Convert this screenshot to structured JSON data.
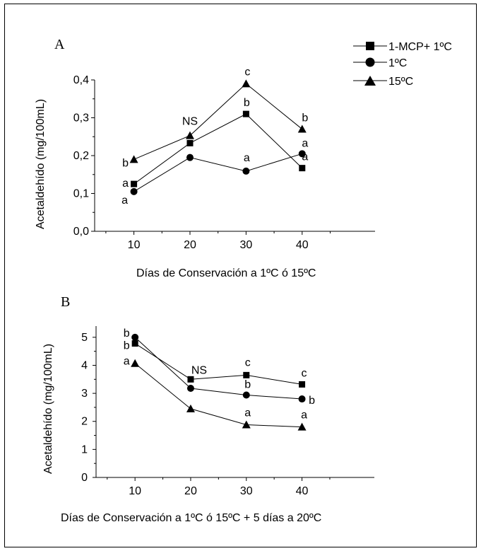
{
  "legend": {
    "items": [
      {
        "label": "1-MCP+ 1ºC",
        "marker": "square"
      },
      {
        "label": "1ºC",
        "marker": "circle"
      },
      {
        "label": "15ºC",
        "marker": "triangle"
      }
    ]
  },
  "chart_data": [
    {
      "type": "line",
      "panel": "A",
      "xlabel": "Días de Conservación a 1ºC ó 15ºC",
      "ylabel": "Acetaldehído (mg/100mL)",
      "x": [
        10,
        20,
        30,
        40
      ],
      "xlim": [
        3,
        53
      ],
      "ylim": [
        0,
        0.4
      ],
      "xticks": [
        "10",
        "20",
        "30",
        "40"
      ],
      "yticks": [
        "0,0",
        "0,1",
        "0,2",
        "0,3",
        "0,4"
      ],
      "series": [
        {
          "name": "1-MCP+ 1ºC",
          "marker": "square",
          "values": [
            0.125,
            0.233,
            0.31,
            0.167
          ]
        },
        {
          "name": "1ºC",
          "marker": "circle",
          "values": [
            0.105,
            0.195,
            0.159,
            0.205
          ]
        },
        {
          "name": "15ºC",
          "marker": "triangle",
          "values": [
            0.19,
            0.253,
            0.39,
            0.27
          ]
        }
      ],
      "annotations": [
        "b",
        "a",
        "a",
        "NS",
        "c",
        "b",
        "a",
        "b",
        "a",
        "a"
      ]
    },
    {
      "type": "line",
      "panel": "B",
      "xlabel": "Días de Conservación a 1ºC ó 15ºC + 5 días a 20ºC",
      "ylabel": "Acetaldehído (mg/100mL)",
      "x": [
        10,
        20,
        30,
        40
      ],
      "xlim": [
        3,
        53
      ],
      "ylim": [
        0,
        5.4
      ],
      "xticks": [
        "10",
        "20",
        "30",
        "40"
      ],
      "yticks": [
        "0",
        "1",
        "2",
        "3",
        "4",
        "5"
      ],
      "series": [
        {
          "name": "1-MCP+ 1ºC",
          "marker": "square",
          "values": [
            4.78,
            3.5,
            3.65,
            3.32
          ]
        },
        {
          "name": "1ºC",
          "marker": "circle",
          "values": [
            5.0,
            3.18,
            2.94,
            2.8
          ]
        },
        {
          "name": "15ºC",
          "marker": "triangle",
          "values": [
            4.07,
            2.45,
            1.88,
            1.8
          ]
        }
      ],
      "annotations": [
        "b",
        "b",
        "a",
        "NS",
        "c",
        "b",
        "a",
        "c",
        "b",
        "a"
      ]
    }
  ]
}
